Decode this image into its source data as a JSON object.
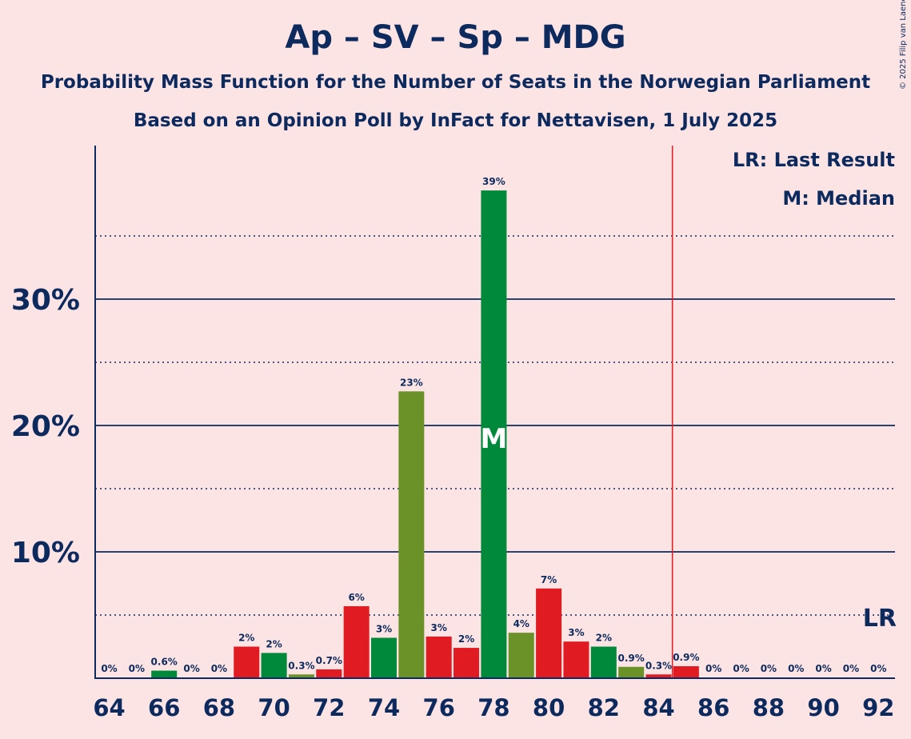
{
  "header": {
    "title": "Ap – SV – Sp – MDG",
    "subtitle1": "Probability Mass Function for the Number of Seats in the Norwegian Parliament",
    "subtitle2": "Based on an Opinion Poll by InFact for Nettavisen, 1 July 2025",
    "copyright": "© 2025 Filip van Laenen"
  },
  "legend": {
    "last_result": "LR: Last Result",
    "median": "M: Median"
  },
  "chart_data": {
    "type": "bar",
    "x": [
      64,
      65,
      66,
      67,
      68,
      69,
      70,
      71,
      72,
      73,
      74,
      75,
      76,
      77,
      78,
      79,
      80,
      81,
      82,
      83,
      84,
      85,
      86,
      87,
      88,
      89,
      90,
      91,
      92
    ],
    "values": [
      0,
      0,
      0.6,
      0,
      0,
      2.5,
      2.0,
      0.3,
      0.7,
      5.7,
      3.2,
      22.7,
      3.3,
      2.4,
      38.6,
      3.6,
      7.1,
      2.9,
      2.5,
      0.9,
      0.3,
      0.95,
      0,
      0,
      0,
      0,
      0,
      0,
      0
    ],
    "labels": [
      "0%",
      "0%",
      "0.6%",
      "0%",
      "0%",
      "2%",
      "2%",
      "0.3%",
      "0.7%",
      "6%",
      "3%",
      "23%",
      "3%",
      "2%",
      "39%",
      "4%",
      "7%",
      "3%",
      "2%",
      "0.9%",
      "0.3%",
      "0.9%",
      "0%",
      "0%",
      "0%",
      "0%",
      "0%",
      "0%",
      "0%"
    ],
    "colors": [
      "#e01b22",
      "#6b9228",
      "#00893b",
      "#e01b22",
      "#6b9228",
      "#e01b22",
      "#00893b",
      "#6b9228",
      "#e01b22",
      "#e01b22",
      "#00893b",
      "#6b9228",
      "#e01b22",
      "#e01b22",
      "#00893b",
      "#6b9228",
      "#e01b22",
      "#e01b22",
      "#00893b",
      "#6b9228",
      "#e01b22",
      "#e01b22",
      "#00893b",
      "#6b9228",
      "#e01b22",
      "#e01b22",
      "#00893b",
      "#6b9228",
      "#e01b22"
    ],
    "x_ticks": [
      "64",
      "66",
      "68",
      "70",
      "72",
      "74",
      "76",
      "78",
      "80",
      "82",
      "84",
      "86",
      "88",
      "90",
      "92"
    ],
    "y_ticks": [
      "10%",
      "20%",
      "30%"
    ],
    "ylim": [
      0,
      42
    ],
    "median": 78,
    "median_label": "M",
    "last_result": 85,
    "last_result_label": "LR",
    "grid": "solid major lines every 10%, dotted minor lines every 5%"
  }
}
